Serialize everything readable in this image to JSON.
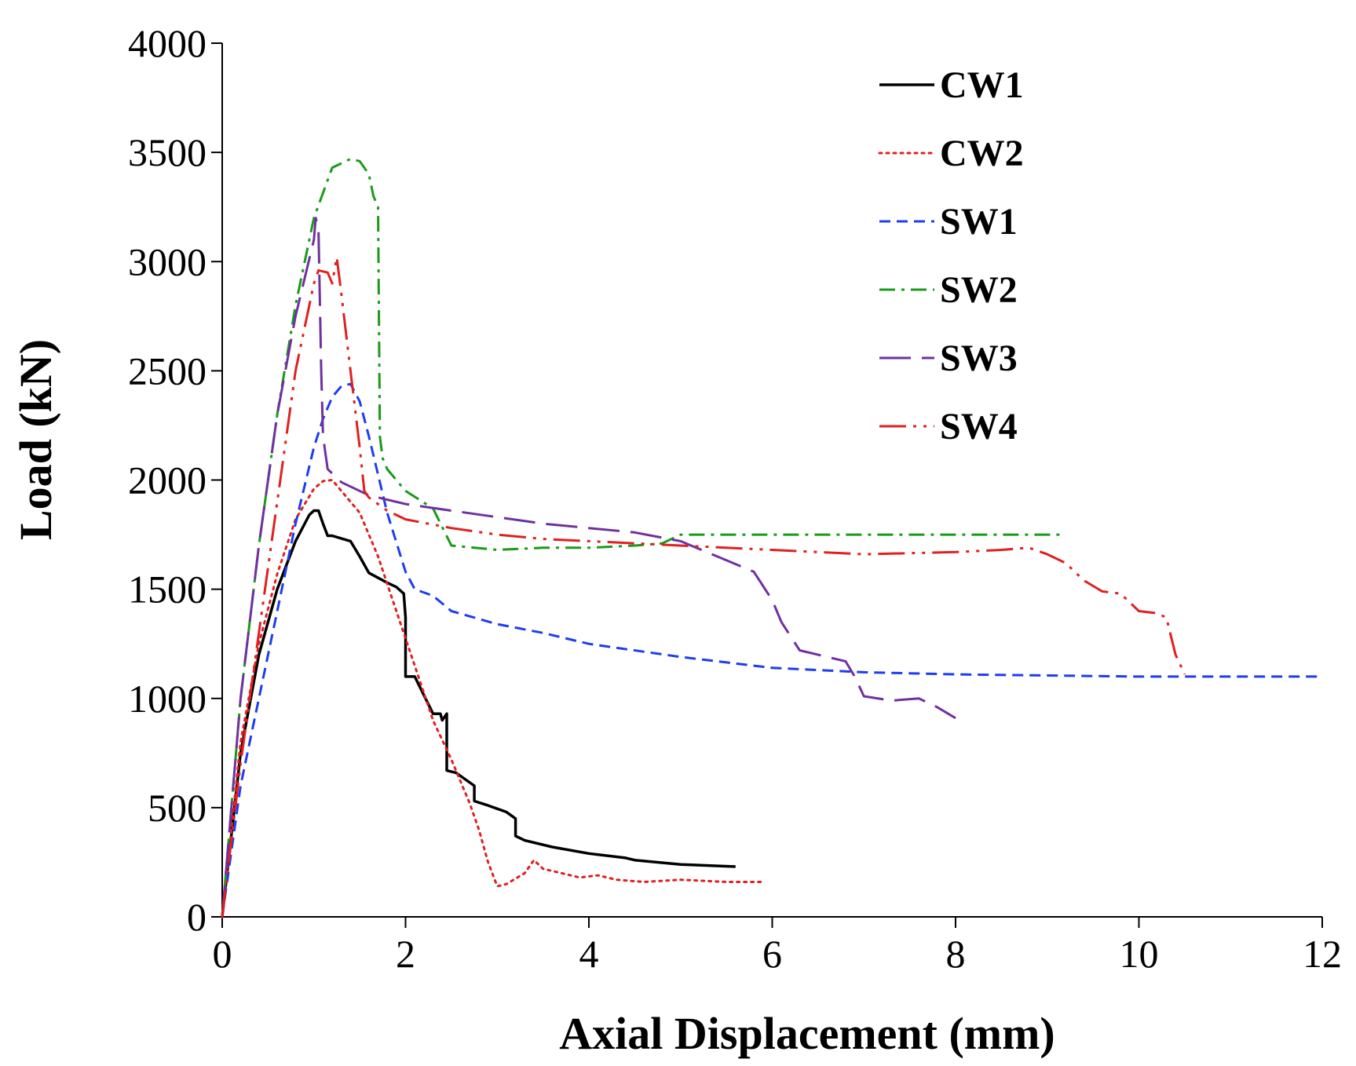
{
  "chart_data": {
    "type": "line",
    "title": "",
    "xlabel": "Axial Displacement (mm)",
    "ylabel": "Load (kN)",
    "xlim": [
      0,
      12
    ],
    "ylim": [
      0,
      4000
    ],
    "xticks": [
      0,
      2,
      4,
      6,
      8,
      10,
      12
    ],
    "yticks": [
      0,
      500,
      1000,
      1500,
      2000,
      2500,
      3000,
      3500,
      4000
    ],
    "grid": false,
    "legend_position": "top-right",
    "series": [
      {
        "name": "CW1",
        "color": "#000000",
        "dash": "solid",
        "x": [
          0,
          0.2,
          0.4,
          0.6,
          0.8,
          0.95,
          1.0,
          1.05,
          1.1,
          1.15,
          1.2,
          1.4,
          1.5,
          1.6,
          1.8,
          1.9,
          1.98,
          2.0,
          2.0,
          2.1,
          2.3,
          2.38,
          2.4,
          2.45,
          2.45,
          2.55,
          2.75,
          2.75,
          2.9,
          3.1,
          3.2,
          3.2,
          3.3,
          3.6,
          4.0,
          4.4,
          4.5,
          5.0,
          5.6
        ],
        "y": [
          0,
          750,
          1200,
          1500,
          1720,
          1840,
          1860,
          1860,
          1800,
          1745,
          1745,
          1720,
          1650,
          1575,
          1530,
          1510,
          1480,
          1370,
          1100,
          1100,
          930,
          930,
          900,
          930,
          670,
          660,
          600,
          530,
          510,
          480,
          450,
          370,
          350,
          320,
          290,
          270,
          260,
          240,
          230
        ]
      },
      {
        "name": "CW2",
        "color": "#e02020",
        "dash": "dotted",
        "x": [
          0,
          0.2,
          0.4,
          0.6,
          0.8,
          1.0,
          1.1,
          1.2,
          1.3,
          1.5,
          1.7,
          1.9,
          2.1,
          2.3,
          2.5,
          2.7,
          2.8,
          2.9,
          3.0,
          3.1,
          3.3,
          3.4,
          3.5,
          3.7,
          3.9,
          4.1,
          4.3,
          4.6,
          5.0,
          5.5,
          5.9
        ],
        "y": [
          0,
          800,
          1250,
          1570,
          1820,
          1960,
          1995,
          2000,
          1950,
          1850,
          1650,
          1400,
          1150,
          900,
          720,
          520,
          400,
          250,
          140,
          150,
          200,
          260,
          220,
          200,
          180,
          190,
          170,
          160,
          170,
          160,
          160
        ]
      },
      {
        "name": "SW1",
        "color": "#1f3cf0",
        "dash": "dashed",
        "x": [
          0,
          0.2,
          0.4,
          0.6,
          0.8,
          1.0,
          1.1,
          1.2,
          1.3,
          1.4,
          1.5,
          1.6,
          1.8,
          2.0,
          2.1,
          2.3,
          2.5,
          3.0,
          3.5,
          4.0,
          5.0,
          6.0,
          7.0,
          8.0,
          9.0,
          10.0,
          12.0
        ],
        "y": [
          0,
          600,
          1000,
          1400,
          1800,
          2150,
          2280,
          2380,
          2430,
          2440,
          2360,
          2200,
          1850,
          1580,
          1500,
          1470,
          1400,
          1340,
          1300,
          1250,
          1190,
          1140,
          1120,
          1110,
          1105,
          1100,
          1100
        ]
      },
      {
        "name": "SW2",
        "color": "#1a9a1a",
        "dash": "dashdot",
        "x": [
          0,
          0.2,
          0.4,
          0.6,
          0.8,
          1.0,
          1.2,
          1.4,
          1.5,
          1.6,
          1.65,
          1.7,
          1.72,
          1.75,
          1.8,
          2.0,
          2.3,
          2.5,
          3.0,
          3.5,
          4.0,
          4.5,
          4.8,
          5.0,
          5.2,
          6.0,
          7.0,
          8.0,
          9.2
        ],
        "y": [
          0,
          1000,
          1700,
          2300,
          2800,
          3200,
          3430,
          3470,
          3460,
          3400,
          3300,
          3250,
          2200,
          2100,
          2050,
          1950,
          1870,
          1700,
          1680,
          1690,
          1690,
          1700,
          1710,
          1750,
          1750,
          1750,
          1750,
          1750,
          1750
        ]
      },
      {
        "name": "SW3",
        "color": "#7030a0",
        "dash": "longdash",
        "x": [
          0,
          0.2,
          0.4,
          0.6,
          0.8,
          1.0,
          1.02,
          1.05,
          1.08,
          1.1,
          1.15,
          1.3,
          1.6,
          2.0,
          2.5,
          3.0,
          3.5,
          4.0,
          4.5,
          5.0,
          5.4,
          5.8,
          6.0,
          6.1,
          6.3,
          6.5,
          6.8,
          6.9,
          7.0,
          7.3,
          7.6,
          7.8,
          8.0
        ],
        "y": [
          0,
          1000,
          1700,
          2300,
          2750,
          3100,
          3200,
          3150,
          2500,
          2200,
          2050,
          1990,
          1930,
          1890,
          1860,
          1830,
          1800,
          1780,
          1760,
          1720,
          1650,
          1580,
          1450,
          1350,
          1220,
          1200,
          1170,
          1100,
          1010,
          990,
          1000,
          960,
          910
        ]
      },
      {
        "name": "SW4",
        "color": "#e02020",
        "dash": "dashdotdot",
        "x": [
          0,
          0.2,
          0.4,
          0.6,
          0.8,
          1.0,
          1.05,
          1.15,
          1.2,
          1.25,
          1.3,
          1.4,
          1.5,
          1.55,
          1.6,
          1.8,
          2.0,
          2.5,
          3.0,
          3.5,
          4.0,
          4.5,
          5.0,
          6.0,
          7.0,
          8.0,
          8.5,
          8.8,
          9.0,
          9.2,
          9.4,
          9.6,
          9.8,
          10.0,
          10.2,
          10.3,
          10.4,
          10.5
        ],
        "y": [
          0,
          700,
          1300,
          1900,
          2500,
          2900,
          2960,
          2950,
          2900,
          3020,
          2850,
          2500,
          2150,
          1950,
          1920,
          1860,
          1820,
          1780,
          1750,
          1730,
          1720,
          1710,
          1700,
          1680,
          1660,
          1670,
          1680,
          1690,
          1660,
          1620,
          1540,
          1490,
          1480,
          1400,
          1390,
          1370,
          1200,
          1110
        ]
      }
    ]
  }
}
